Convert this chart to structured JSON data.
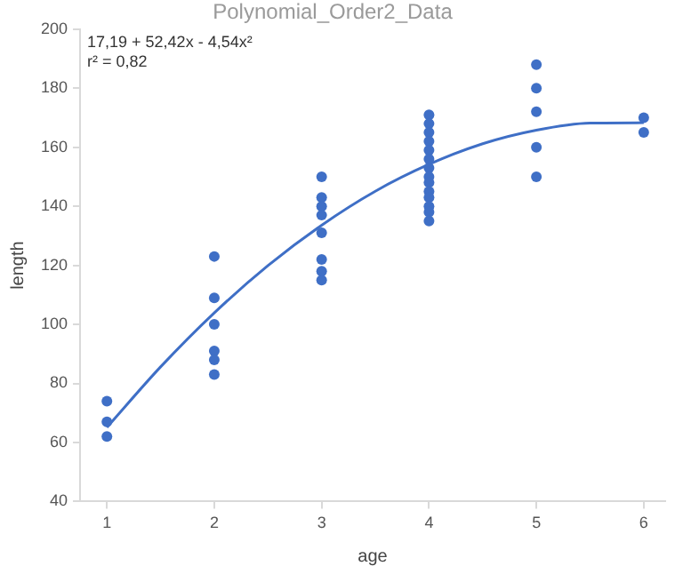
{
  "chart_data": {
    "type": "scatter",
    "title": "Polynomial_Order2_Data",
    "xlabel": "age",
    "ylabel": "length",
    "annotations": [
      "17,19 + 52,42x - 4,54x²",
      "r² = 0,82"
    ],
    "series": [
      {
        "type": "scatter",
        "color": "#3f6fc6",
        "x": [
          1,
          1,
          1,
          2,
          2,
          2,
          2,
          2,
          2,
          3,
          3,
          3,
          3,
          3,
          3,
          3,
          3,
          4,
          4,
          4,
          4,
          4,
          4,
          4,
          4,
          4,
          4,
          4,
          4,
          4,
          4,
          5,
          5,
          5,
          5,
          5,
          6,
          6
        ],
        "values": [
          74,
          67,
          62,
          123,
          109,
          100,
          91,
          88,
          83,
          150,
          143,
          140,
          137,
          131,
          122,
          118,
          115,
          171,
          168,
          165,
          162,
          159,
          156,
          153,
          150,
          148,
          145,
          143,
          140,
          138,
          135,
          188,
          180,
          172,
          160,
          150,
          170,
          165
        ]
      },
      {
        "type": "line",
        "color": "#3f6fc6",
        "marker": "none",
        "x": [
          1,
          1.5,
          2,
          2.5,
          3,
          3.5,
          4,
          4.5,
          5,
          5.5,
          6
        ],
        "values": [
          65.1,
          85.6,
          103.9,
          119.9,
          133.6,
          145.1,
          154.2,
          161.2,
          165.8,
          168.2,
          168.3
        ]
      }
    ],
    "xlim": [
      0.75,
      6.2
    ],
    "xticks": [
      1,
      2,
      3,
      4,
      5,
      6
    ],
    "ylim": [
      40,
      200
    ],
    "yticks": [
      40,
      60,
      80,
      100,
      120,
      140,
      160,
      180,
      200
    ],
    "grid": false,
    "legend": false,
    "marker": "circle"
  }
}
